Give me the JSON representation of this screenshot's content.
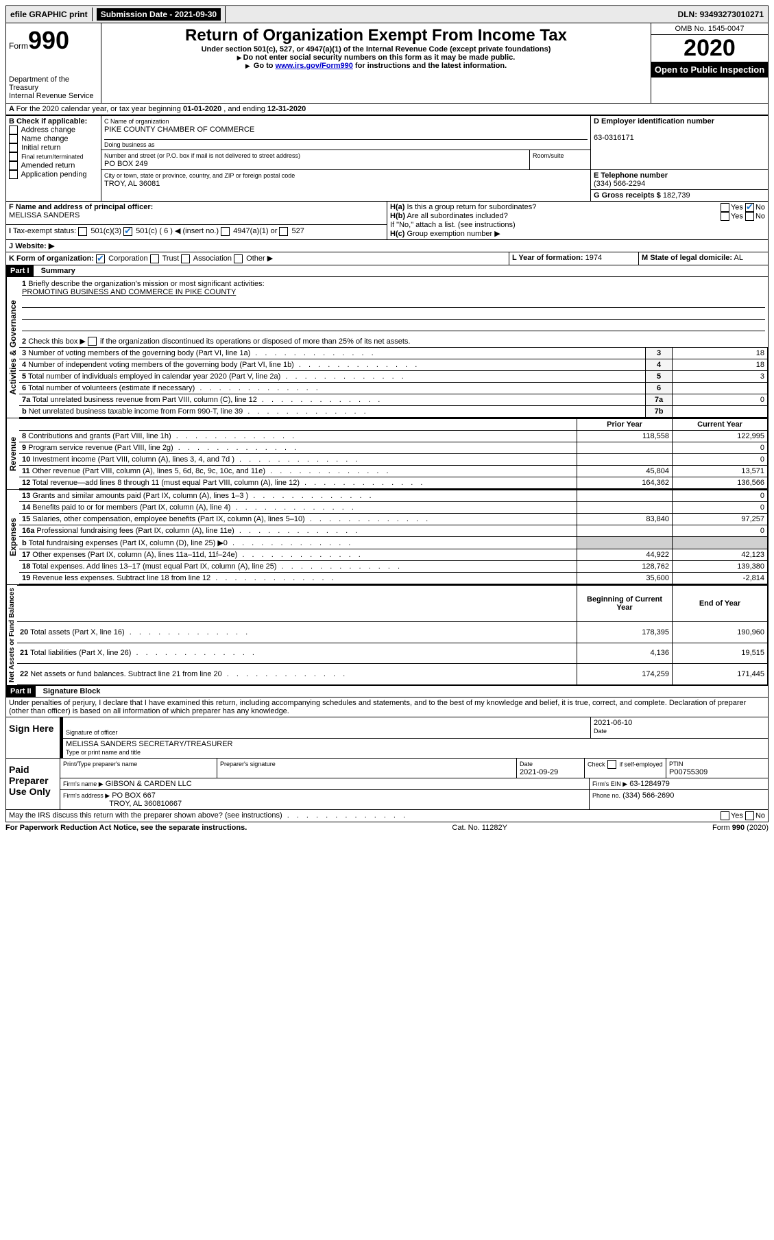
{
  "top_bar": {
    "efile": "efile GRAPHIC print",
    "submission_label": "Submission Date -",
    "submission_date": "2021-09-30",
    "dln_label": "DLN:",
    "dln": "93493273010271"
  },
  "header": {
    "form_word": "Form",
    "form_number": "990",
    "dept": "Department of the Treasury",
    "irs": "Internal Revenue Service",
    "title": "Return of Organization Exempt From Income Tax",
    "subtitle": "Under section 501(c), 527, or 4947(a)(1) of the Internal Revenue Code (except private foundations)",
    "note1": "Do not enter social security numbers on this form as it may be made public.",
    "note2_pre": "Go to ",
    "note2_link": "www.irs.gov/Form990",
    "note2_post": " for instructions and the latest information.",
    "omb": "OMB No. 1545-0047",
    "year": "2020",
    "inspection": "Open to Public Inspection"
  },
  "line_a": {
    "text_pre": "For the 2020 calendar year, or tax year beginning ",
    "begin": "01-01-2020",
    "text_mid": " , and ending ",
    "end": "12-31-2020"
  },
  "box_b": {
    "label": "B Check if applicable:",
    "items": [
      "Address change",
      "Name change",
      "Initial return",
      "Final return/terminated",
      "Amended return",
      "Application pending"
    ]
  },
  "box_c": {
    "label": "C Name of organization",
    "name": "PIKE COUNTY CHAMBER OF COMMERCE",
    "dba_label": "Doing business as",
    "street_label": "Number and street (or P.O. box if mail is not delivered to street address)",
    "room_label": "Room/suite",
    "street": "PO BOX 249",
    "city_label": "City or town, state or province, country, and ZIP or foreign postal code",
    "city": "TROY, AL  36081"
  },
  "box_d": {
    "label": "D Employer identification number",
    "ein": "63-0316171"
  },
  "box_e": {
    "label": "E Telephone number",
    "phone": "(334) 566-2294"
  },
  "box_g": {
    "label": "G Gross receipts $",
    "amount": "182,739"
  },
  "box_f": {
    "label": "F Name and address of principal officer:",
    "name": "MELISSA SANDERS"
  },
  "box_h": {
    "ha_label": "H(a)",
    "ha_text": "Is this a group return for subordinates?",
    "hb_label": "H(b)",
    "hb_text": "Are all subordinates included?",
    "hb_note": "If \"No,\" attach a list. (see instructions)",
    "hc_label": "H(c)",
    "hc_text": "Group exemption number ▶",
    "yes": "Yes",
    "no": "No"
  },
  "box_i": {
    "label": "I",
    "text": "Tax-exempt status:",
    "opts": [
      "501(c)(3)",
      "501(c) ( 6 ) ◀ (insert no.)",
      "4947(a)(1) or",
      "527"
    ]
  },
  "box_j": {
    "label": "J",
    "text": "Website: ▶"
  },
  "box_k": {
    "label": "K Form of organization:",
    "opts": [
      "Corporation",
      "Trust",
      "Association",
      "Other ▶"
    ]
  },
  "box_l": {
    "label": "L Year of formation:",
    "value": "1974"
  },
  "box_m": {
    "label": "M State of legal domicile:",
    "value": "AL"
  },
  "part1": {
    "header": "Part I",
    "title": "Summary",
    "line1_label": "1",
    "line1_text": "Briefly describe the organization's mission or most significant activities:",
    "line1_value": "PROMOTING BUSINESS AND COMMERCE IN PIKE COUNTY",
    "line2_label": "2",
    "line2_text": "Check this box ▶",
    "line2_post": "if the organization discontinued its operations or disposed of more than 25% of its net assets.",
    "sections": {
      "governance": "Activities & Governance",
      "revenue": "Revenue",
      "expenses": "Expenses",
      "net": "Net Assets or Fund Balances"
    },
    "gov_rows": [
      {
        "num": "3",
        "label": "Number of voting members of the governing body (Part VI, line 1a)",
        "code": "3",
        "val": "18"
      },
      {
        "num": "4",
        "label": "Number of independent voting members of the governing body (Part VI, line 1b)",
        "code": "4",
        "val": "18"
      },
      {
        "num": "5",
        "label": "Total number of individuals employed in calendar year 2020 (Part V, line 2a)",
        "code": "5",
        "val": "3"
      },
      {
        "num": "6",
        "label": "Total number of volunteers (estimate if necessary)",
        "code": "6",
        "val": ""
      },
      {
        "num": "7a",
        "label": "Total unrelated business revenue from Part VIII, column (C), line 12",
        "code": "7a",
        "val": "0"
      },
      {
        "num": "b",
        "label": "Net unrelated business taxable income from Form 990-T, line 39",
        "code": "7b",
        "val": ""
      }
    ],
    "col_headers": {
      "prior": "Prior Year",
      "current": "Current Year",
      "begin": "Beginning of Current Year",
      "end": "End of Year"
    },
    "rev_rows": [
      {
        "num": "8",
        "label": "Contributions and grants (Part VIII, line 1h)",
        "prior": "118,558",
        "current": "122,995"
      },
      {
        "num": "9",
        "label": "Program service revenue (Part VIII, line 2g)",
        "prior": "",
        "current": "0"
      },
      {
        "num": "10",
        "label": "Investment income (Part VIII, column (A), lines 3, 4, and 7d )",
        "prior": "",
        "current": "0"
      },
      {
        "num": "11",
        "label": "Other revenue (Part VIII, column (A), lines 5, 6d, 8c, 9c, 10c, and 11e)",
        "prior": "45,804",
        "current": "13,571"
      },
      {
        "num": "12",
        "label": "Total revenue—add lines 8 through 11 (must equal Part VIII, column (A), line 12)",
        "prior": "164,362",
        "current": "136,566"
      }
    ],
    "exp_rows": [
      {
        "num": "13",
        "label": "Grants and similar amounts paid (Part IX, column (A), lines 1–3 )",
        "prior": "",
        "current": "0"
      },
      {
        "num": "14",
        "label": "Benefits paid to or for members (Part IX, column (A), line 4)",
        "prior": "",
        "current": "0"
      },
      {
        "num": "15",
        "label": "Salaries, other compensation, employee benefits (Part IX, column (A), lines 5–10)",
        "prior": "83,840",
        "current": "97,257"
      },
      {
        "num": "16a",
        "label": "Professional fundraising fees (Part IX, column (A), line 11e)",
        "prior": "",
        "current": "0"
      },
      {
        "num": "b",
        "label": "Total fundraising expenses (Part IX, column (D), line 25) ▶0",
        "prior": "SHADE",
        "current": "SHADE"
      },
      {
        "num": "17",
        "label": "Other expenses (Part IX, column (A), lines 11a–11d, 11f–24e)",
        "prior": "44,922",
        "current": "42,123"
      },
      {
        "num": "18",
        "label": "Total expenses. Add lines 13–17 (must equal Part IX, column (A), line 25)",
        "prior": "128,762",
        "current": "139,380"
      },
      {
        "num": "19",
        "label": "Revenue less expenses. Subtract line 18 from line 12",
        "prior": "35,600",
        "current": "-2,814"
      }
    ],
    "net_rows": [
      {
        "num": "20",
        "label": "Total assets (Part X, line 16)",
        "prior": "178,395",
        "current": "190,960"
      },
      {
        "num": "21",
        "label": "Total liabilities (Part X, line 26)",
        "prior": "4,136",
        "current": "19,515"
      },
      {
        "num": "22",
        "label": "Net assets or fund balances. Subtract line 21 from line 20",
        "prior": "174,259",
        "current": "171,445"
      }
    ]
  },
  "part2": {
    "header": "Part II",
    "title": "Signature Block",
    "declaration": "Under penalties of perjury, I declare that I have examined this return, including accompanying schedules and statements, and to the best of my knowledge and belief, it is true, correct, and complete. Declaration of preparer (other than officer) is based on all information of which preparer has any knowledge.",
    "sign_here": "Sign Here",
    "sig_officer": "Signature of officer",
    "date_label": "Date",
    "sig_date": "2021-06-10",
    "officer_name": "MELISSA SANDERS SECRETARY/TREASURER",
    "type_name": "Type or print name and title",
    "paid": "Paid Preparer Use Only",
    "print_name_label": "Print/Type preparer's name",
    "prep_sig_label": "Preparer's signature",
    "prep_date_label": "Date",
    "prep_date": "2021-09-29",
    "check_self": "Check",
    "self_emp": "if self-employed",
    "ptin_label": "PTIN",
    "ptin": "P00755309",
    "firm_name_label": "Firm's name     ▶",
    "firm_name": "GIBSON & CARDEN LLC",
    "firm_ein_label": "Firm's EIN ▶",
    "firm_ein": "63-1284979",
    "firm_addr_label": "Firm's address ▶",
    "firm_addr1": "PO BOX 667",
    "firm_addr2": "TROY, AL  360810667",
    "phone_label": "Phone no.",
    "phone": "(334) 566-2690",
    "discuss": "May the IRS discuss this return with the preparer shown above? (see instructions)"
  },
  "footer": {
    "paperwork": "For Paperwork Reduction Act Notice, see the separate instructions.",
    "cat": "Cat. No. 11282Y",
    "form": "Form 990 (2020)"
  }
}
